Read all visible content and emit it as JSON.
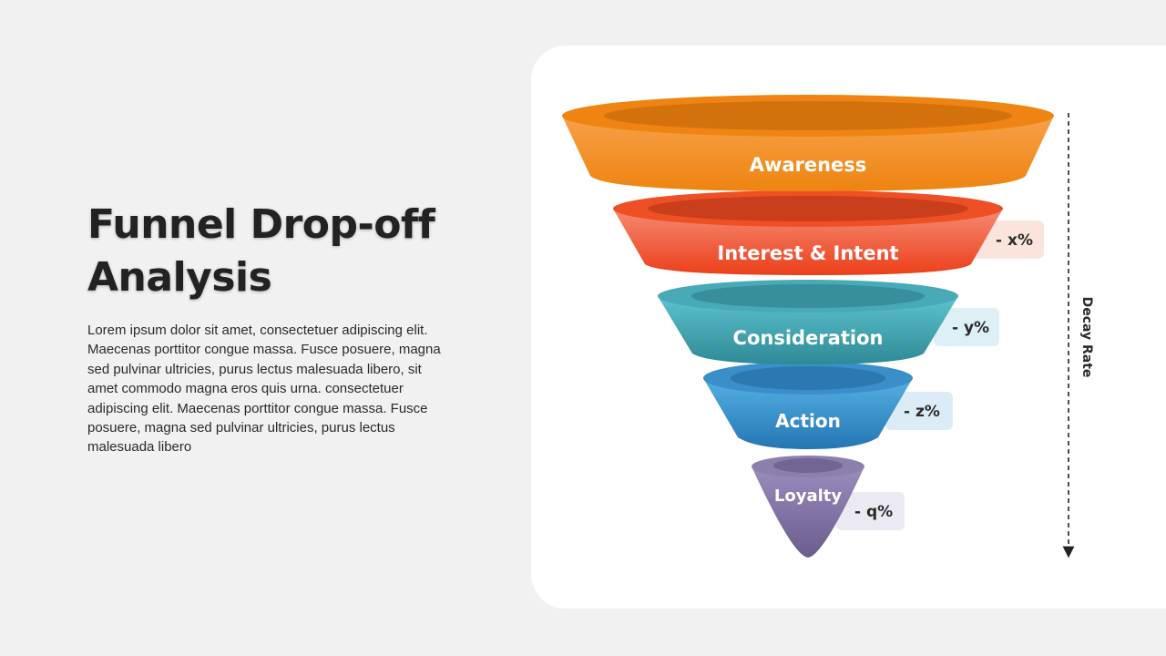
{
  "slide": {
    "title": "Funnel Drop-off Analysis",
    "body": "Lorem ipsum dolor sit amet, consectetuer adipiscing elit. Maecenas porttitor congue massa. Fusce posuere, magna sed pulvinar ultricies, purus lectus malesuada libero, sit amet commodo magna eros quis urna. consectetuer adipiscing elit. Maecenas porttitor congue massa. Fusce posuere, magna sed pulvinar ultricies, purus lectus malesuada libero"
  },
  "funnel": {
    "stages": [
      {
        "label": "Awareness",
        "color": "#f08a1c",
        "drop": ""
      },
      {
        "label": "Interest & Intent",
        "color": "#ee4b22",
        "drop": "- x%"
      },
      {
        "label": "Consideration",
        "color": "#3aa6b3",
        "drop": "- y%"
      },
      {
        "label": "Action",
        "color": "#2f8bc6",
        "drop": "- z%"
      },
      {
        "label": "Loyalty",
        "color": "#7c6e9e",
        "drop": "- q%"
      }
    ],
    "decay_label": "Decay Rate"
  }
}
